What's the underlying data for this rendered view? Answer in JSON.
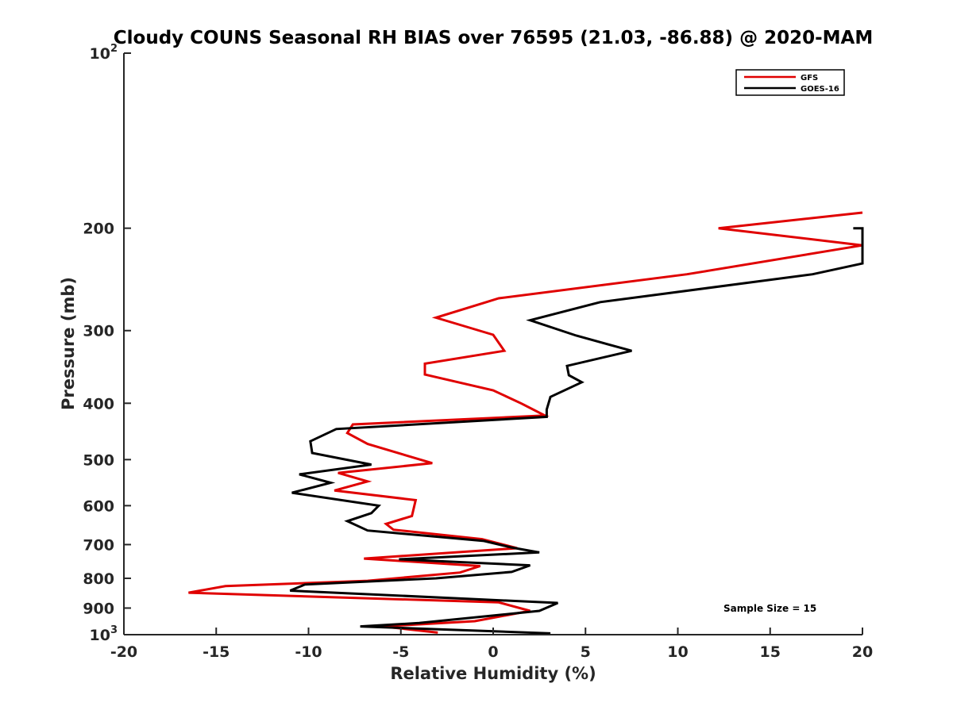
{
  "chart_data": {
    "type": "line",
    "title": "Cloudy COUNS Seasonal RH BIAS over 76595 (21.03, -86.88) @ 2020-MAM",
    "xlabel": "Relative Humidity (%)",
    "ylabel": "Pressure (mb)",
    "xlim": [
      -20,
      20
    ],
    "ylim": [
      100,
      1000
    ],
    "yscale": "log",
    "yreversed": true,
    "grid": false,
    "x_ticks": [
      "-20",
      "-15",
      "-10",
      "-5",
      "0",
      "5",
      "10",
      "15",
      "20"
    ],
    "x_tick_values": [
      -20,
      -15,
      -10,
      -5,
      0,
      5,
      10,
      15,
      20
    ],
    "y_tick_values": [
      100,
      200,
      300,
      400,
      500,
      600,
      700,
      800,
      900,
      1000
    ],
    "y_tick_labels": [
      {
        "base": "10",
        "exp": "2"
      },
      {
        "base": "200",
        "exp": ""
      },
      {
        "base": "300",
        "exp": ""
      },
      {
        "base": "400",
        "exp": ""
      },
      {
        "base": "500",
        "exp": ""
      },
      {
        "base": "600",
        "exp": ""
      },
      {
        "base": "700",
        "exp": ""
      },
      {
        "base": "800",
        "exp": ""
      },
      {
        "base": "900",
        "exp": ""
      },
      {
        "base": "10",
        "exp": "3"
      }
    ],
    "legend_position": "top-right",
    "annotation": "Sample Size = 15",
    "series": [
      {
        "name": "GFS",
        "color": "#e00000",
        "points": [
          [
            20.0,
            188
          ],
          [
            12.2,
            200
          ],
          [
            20.0,
            214
          ],
          [
            10.5,
            240
          ],
          [
            0.3,
            264
          ],
          [
            -3.1,
            285
          ],
          [
            0.0,
            305
          ],
          [
            0.6,
            325
          ],
          [
            -3.7,
            342
          ],
          [
            -3.7,
            357
          ],
          [
            0.0,
            380
          ],
          [
            1.5,
            400
          ],
          [
            2.8,
            420
          ],
          [
            -7.6,
            435
          ],
          [
            -7.9,
            450
          ],
          [
            -6.8,
            470
          ],
          [
            -3.3,
            507
          ],
          [
            -8.4,
            527
          ],
          [
            -6.8,
            545
          ],
          [
            -8.6,
            565
          ],
          [
            -4.2,
            587
          ],
          [
            -4.4,
            625
          ],
          [
            -5.8,
            645
          ],
          [
            -5.4,
            660
          ],
          [
            -0.6,
            685
          ],
          [
            1.3,
            710
          ],
          [
            -7.0,
            740
          ],
          [
            -0.7,
            762
          ],
          [
            -1.8,
            782
          ],
          [
            -6.8,
            808
          ],
          [
            -14.5,
            825
          ],
          [
            -16.5,
            847
          ],
          [
            0.3,
            880
          ],
          [
            2.0,
            910
          ],
          [
            -1.0,
            948
          ],
          [
            -6.0,
            968
          ],
          [
            -3.0,
            992
          ]
        ]
      },
      {
        "name": "GOES-16",
        "color": "#000000",
        "points": [
          [
            20.0,
            200
          ],
          [
            19.5,
            200
          ],
          [
            20.0,
            200
          ],
          [
            20.0,
            230
          ],
          [
            17.3,
            240
          ],
          [
            5.8,
            268
          ],
          [
            2.0,
            288
          ],
          [
            4.5,
            306
          ],
          [
            7.5,
            325
          ],
          [
            4.0,
            345
          ],
          [
            4.1,
            358
          ],
          [
            4.8,
            368
          ],
          [
            3.1,
            390
          ],
          [
            2.9,
            410
          ],
          [
            2.9,
            422
          ],
          [
            -8.5,
            443
          ],
          [
            -9.9,
            465
          ],
          [
            -9.8,
            487
          ],
          [
            -6.6,
            510
          ],
          [
            -10.5,
            530
          ],
          [
            -8.8,
            548
          ],
          [
            -10.9,
            570
          ],
          [
            -6.2,
            600
          ],
          [
            -6.6,
            618
          ],
          [
            -7.9,
            638
          ],
          [
            -6.8,
            662
          ],
          [
            -0.5,
            690
          ],
          [
            1.0,
            708
          ],
          [
            2.5,
            722
          ],
          [
            -5.1,
            742
          ],
          [
            2.0,
            760
          ],
          [
            1.0,
            780
          ],
          [
            -3.1,
            800
          ],
          [
            -10.2,
            820
          ],
          [
            -11.0,
            840
          ],
          [
            3.5,
            882
          ],
          [
            2.5,
            910
          ],
          [
            -4.0,
            955
          ],
          [
            -7.2,
            968
          ],
          [
            3.1,
            995
          ]
        ]
      }
    ]
  }
}
